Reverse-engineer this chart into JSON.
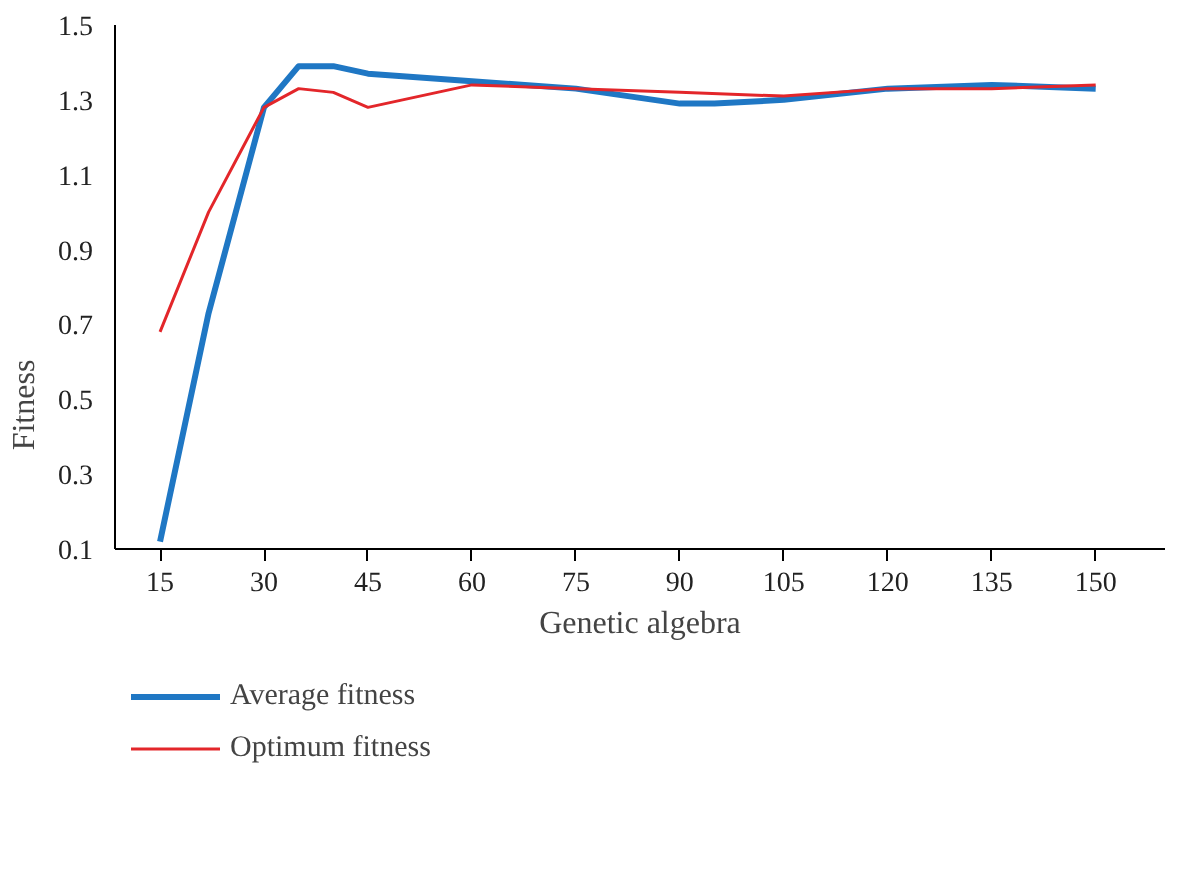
{
  "chart_data": {
    "type": "line",
    "xlabel": "Genetic algebra",
    "ylabel": "Fitness",
    "xlim": [
      8.5,
      160
    ],
    "ylim": [
      0.1,
      1.5
    ],
    "xticks": [
      15,
      30,
      45,
      60,
      75,
      90,
      105,
      120,
      135,
      150
    ],
    "yticks": [
      {
        "value": 0.1,
        "label": "0.1"
      },
      {
        "value": 0.3,
        "label": "0.3"
      },
      {
        "value": 0.5,
        "label": "0.5"
      },
      {
        "value": 0.7,
        "label": "0.7"
      },
      {
        "value": 0.9,
        "label": "0.9"
      },
      {
        "value": 1.1,
        "label": "1.1"
      },
      {
        "value": 1.3,
        "label": "1.3"
      },
      {
        "value": 1.5,
        "label": "1.5"
      }
    ],
    "grid": false,
    "legend": "bottom",
    "line_style": "solid",
    "series": [
      {
        "name": "Average fitness",
        "color": "#1f77c4",
        "x": [
          15,
          22,
          30,
          35,
          40,
          45,
          60,
          75,
          90,
          95,
          105,
          120,
          135,
          150
        ],
        "values": [
          0.12,
          0.73,
          1.28,
          1.39,
          1.39,
          1.37,
          1.35,
          1.33,
          1.29,
          1.29,
          1.3,
          1.33,
          1.34,
          1.33
        ]
      },
      {
        "name": "Optimum fitness",
        "color": "#e3262a",
        "x": [
          15,
          22,
          30,
          35,
          40,
          45,
          50,
          60,
          75,
          90,
          105,
          120,
          135,
          150
        ],
        "values": [
          0.68,
          1.0,
          1.28,
          1.33,
          1.32,
          1.28,
          1.3,
          1.34,
          1.33,
          1.32,
          1.31,
          1.33,
          1.33,
          1.34
        ]
      }
    ]
  }
}
